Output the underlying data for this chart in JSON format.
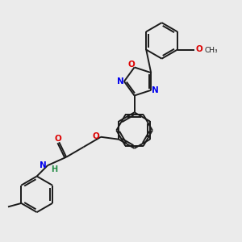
{
  "background_color": "#ebebeb",
  "bond_color": "#1a1a1a",
  "N_color": "#0000ee",
  "O_color": "#dd0000",
  "H_color": "#228B44",
  "figsize": [
    3.0,
    3.0
  ],
  "dpi": 100,
  "xlim": [
    0,
    10
  ],
  "ylim": [
    0,
    10
  ]
}
